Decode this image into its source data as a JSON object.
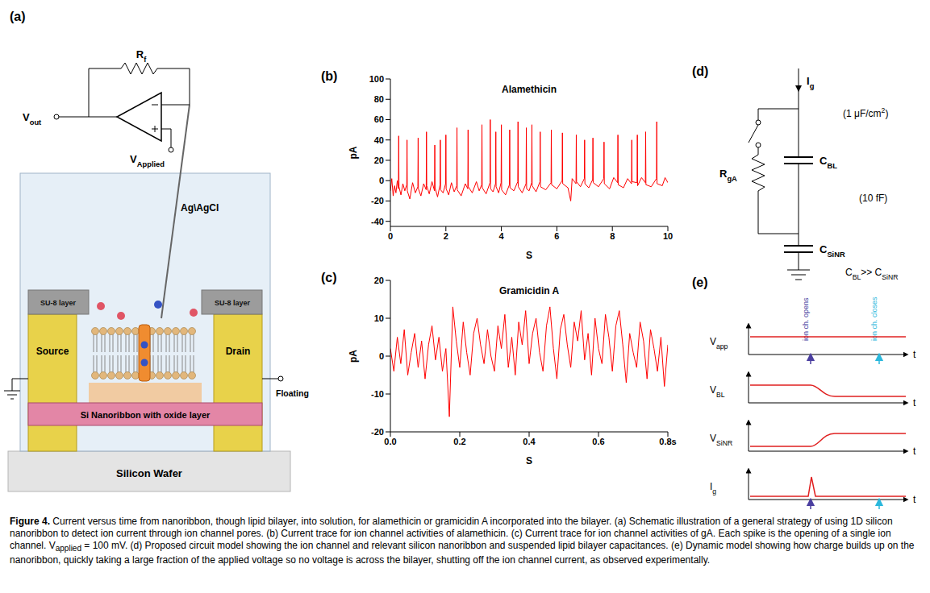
{
  "figure": {
    "panels": {
      "a": {
        "letter": "(a)",
        "labels": {
          "rf": [
            "R",
            {
              "sub": "f"
            }
          ],
          "vout": [
            "V",
            {
              "sub": "out"
            }
          ],
          "vapplied": [
            "V",
            {
              "sub": "Applied"
            }
          ],
          "electrode": [
            "Ag\\AgCl"
          ],
          "su8_left": [
            "SU-8 layer"
          ],
          "su8_right": [
            "SU-8 layer"
          ],
          "source": [
            "Source"
          ],
          "drain": [
            "Drain"
          ],
          "nanoribbon": [
            "Si Nanoribbon with oxide layer"
          ],
          "wafer": [
            "Silicon Wafer"
          ],
          "floating": [
            "Floating"
          ]
        }
      },
      "d": {
        "letter": "(d)",
        "labels": {
          "ig": [
            "I",
            {
              "sub": "g"
            }
          ],
          "cbl": [
            "C",
            {
              "sub": "BL"
            }
          ],
          "cbl_unit": [
            "(1 μF/cm",
            {
              "sup": "2"
            },
            ")"
          ],
          "rga": [
            "R",
            {
              "sub": "gA"
            }
          ],
          "csinr_unit": [
            "(10 fF)"
          ],
          "csinr": [
            "C",
            {
              "sub": "SiNR"
            }
          ],
          "relation": [
            "C",
            {
              "sub": "BL"
            },
            ">> C",
            {
              "sub": "SiNR"
            }
          ]
        }
      },
      "e": {
        "letter": "(e)",
        "rows": [
          [
            "V",
            {
              "sub": "app"
            }
          ],
          [
            "V",
            {
              "sub": "BL"
            }
          ],
          [
            "V",
            {
              "sub": "SiNR"
            }
          ],
          [
            "I",
            {
              "sub": "g"
            }
          ]
        ],
        "time_label": "t",
        "opens": "ion ch. opens",
        "closes": "ion ch. closes"
      }
    },
    "caption": [
      {
        "b": "Figure 4."
      },
      " Current versus time from nanoribbon, though lipid bilayer, into solution, for alamethicin or gramicidin A incorporated into the bilayer. (a) Schematic illustration of a general strategy of using 1D silicon nanoribbon to detect ion current through ion channel pores. (b) Current trace for ion channel activities of alamethicin. (c) Current trace for ion channel activities of gA. Each spike is the opening of a single ion channel. ",
      "V",
      {
        "sub": "applied"
      },
      " = 100 mV. (d) Proposed circuit model showing the ion channel and relevant silicon nanoribbon and suspended lipid bilayer capacitances. (e) Dynamic model showing how charge builds up on the nanoribbon, quickly taking a large fraction of the applied voltage so no voltage is across the bilayer, shutting off the ion channel current, as observed experimentally."
    ]
  },
  "chart_data": [
    {
      "type": "line",
      "panel": "(b)",
      "title": "Alamethicin",
      "y_label": "pA",
      "x_label": "S",
      "color": "#ff0000",
      "grid": false,
      "xlim": [
        0,
        10
      ],
      "xticks": [
        0,
        2,
        4,
        6,
        8,
        10
      ],
      "ylim": [
        -45,
        100
      ],
      "yticks": [
        -40,
        -20,
        0,
        20,
        40,
        60,
        80,
        100
      ],
      "x": [
        0,
        0.05,
        0.1,
        0.15,
        0.2,
        0.25,
        0.29,
        0.3,
        0.31,
        0.38,
        0.45,
        0.52,
        0.59,
        0.6,
        0.61,
        0.7,
        0.8,
        0.9,
        0.99,
        1,
        1.01,
        1.1,
        1.2,
        1.29,
        1.3,
        1.31,
        1.4,
        1.5,
        1.59,
        1.6,
        1.61,
        1.7,
        1.79,
        1.8,
        1.81,
        1.9,
        1.99,
        2,
        2.01,
        2.1,
        2.2,
        2.3,
        2.39,
        2.4,
        2.41,
        2.55,
        2.7,
        2.79,
        2.8,
        2.81,
        2.95,
        3.1,
        3.2,
        3.29,
        3.3,
        3.31,
        3.45,
        3.59,
        3.6,
        3.61,
        3.7,
        3.79,
        3.8,
        3.81,
        3.9,
        3.99,
        4,
        4.01,
        4.15,
        4.29,
        4.3,
        4.31,
        4.45,
        4.59,
        4.6,
        4.61,
        4.75,
        4.89,
        4.9,
        4.91,
        5,
        5.09,
        5.1,
        5.11,
        5.25,
        5.39,
        5.4,
        5.41,
        5.6,
        5.79,
        5.8,
        5.81,
        6,
        6.19,
        6.2,
        6.21,
        6.4,
        6.5,
        6.55,
        6.69,
        6.7,
        6.71,
        6.85,
        6.99,
        7,
        7.01,
        7.15,
        7.29,
        7.3,
        7.31,
        7.5,
        7.69,
        7.7,
        7.71,
        7.9,
        8.05,
        8.19,
        8.2,
        8.21,
        8.4,
        8.55,
        8.69,
        8.7,
        8.71,
        8.89,
        8.9,
        8.91,
        9.05,
        9.19,
        9.2,
        9.21,
        9.4,
        9.59,
        9.6,
        9.61,
        9.8,
        9.9,
        10
      ],
      "values": [
        -10,
        2,
        -15,
        -5,
        -12,
        0,
        -8,
        44,
        -6,
        -14,
        -3,
        -10,
        -4,
        40,
        -10,
        -18,
        -2,
        -12,
        -6,
        42,
        -8,
        -15,
        -3,
        -9,
        48,
        -5,
        -13,
        -1,
        -10,
        35,
        -7,
        -16,
        -4,
        40,
        -9,
        -12,
        -3,
        45,
        -8,
        -14,
        -2,
        -11,
        -5,
        52,
        -9,
        -15,
        -3,
        -8,
        50,
        -6,
        -12,
        -1,
        -10,
        -4,
        55,
        -7,
        -13,
        -2,
        60,
        -8,
        -11,
        -3,
        48,
        -6,
        -12,
        -2,
        55,
        -9,
        -14,
        -4,
        50,
        -7,
        -10,
        -1,
        58,
        -6,
        -12,
        -3,
        52,
        -8,
        -10,
        -2,
        55,
        -5,
        -11,
        -1,
        48,
        -6,
        -9,
        -2,
        50,
        -4,
        -8,
        0,
        47,
        -3,
        -7,
        -20,
        2,
        -3,
        45,
        -1,
        -6,
        2,
        40,
        -3,
        -7,
        1,
        42,
        -2,
        -6,
        2,
        38,
        -3,
        -8,
        3,
        -2,
        45,
        -4,
        -7,
        2,
        -3,
        40,
        -1,
        -2,
        45,
        -5,
        3,
        -2,
        48,
        -4,
        -6,
        2,
        58,
        -3,
        -5,
        3,
        -2
      ]
    },
    {
      "type": "line",
      "panel": "(c)",
      "title": "Gramicidin A",
      "y_label": "pA",
      "x_label": "S",
      "color": "#ff0000",
      "grid": false,
      "xlim": [
        0,
        0.8
      ],
      "xticks": [
        {
          "value": 0,
          "label": "0.0"
        },
        0.2,
        0.4,
        0.6,
        {
          "value": 0.8,
          "label": "0.8s"
        }
      ],
      "ylim": [
        -20,
        20
      ],
      "yticks": [
        -20,
        -10,
        0,
        10,
        20
      ],
      "x": [
        0,
        0.01,
        0.02,
        0.03,
        0.04,
        0.05,
        0.06,
        0.07,
        0.08,
        0.09,
        0.1,
        0.11,
        0.12,
        0.13,
        0.14,
        0.15,
        0.16,
        0.17,
        0.18,
        0.19,
        0.2,
        0.21,
        0.22,
        0.23,
        0.24,
        0.25,
        0.26,
        0.27,
        0.28,
        0.29,
        0.3,
        0.31,
        0.32,
        0.33,
        0.34,
        0.35,
        0.36,
        0.37,
        0.38,
        0.39,
        0.4,
        0.41,
        0.42,
        0.43,
        0.44,
        0.45,
        0.46,
        0.47,
        0.48,
        0.49,
        0.5,
        0.51,
        0.52,
        0.53,
        0.54,
        0.55,
        0.56,
        0.57,
        0.58,
        0.59,
        0.6,
        0.61,
        0.62,
        0.63,
        0.64,
        0.65,
        0.66,
        0.67,
        0.68,
        0.69,
        0.7,
        0.71,
        0.72,
        0.73,
        0.74,
        0.75,
        0.76,
        0.77,
        0.78,
        0.79,
        0.8
      ],
      "values": [
        2,
        -4,
        5,
        -2,
        7,
        -5,
        1,
        6,
        -3,
        4,
        -6,
        3,
        8,
        -1,
        5,
        -4,
        2,
        -16,
        13,
        4,
        -3,
        9,
        1,
        -5,
        6,
        10,
        3,
        -2,
        7,
        0,
        -4,
        8,
        2,
        11,
        -3,
        5,
        -5,
        9,
        3,
        12,
        -2,
        6,
        10,
        1,
        -4,
        8,
        13,
        2,
        -6,
        7,
        11,
        3,
        -3,
        9,
        4,
        12,
        -1,
        6,
        -5,
        10,
        2,
        -2,
        11,
        5,
        -4,
        8,
        12,
        3,
        -7,
        6,
        1,
        -3,
        9,
        4,
        -6,
        7,
        2,
        -4,
        5,
        -8,
        3
      ]
    }
  ]
}
